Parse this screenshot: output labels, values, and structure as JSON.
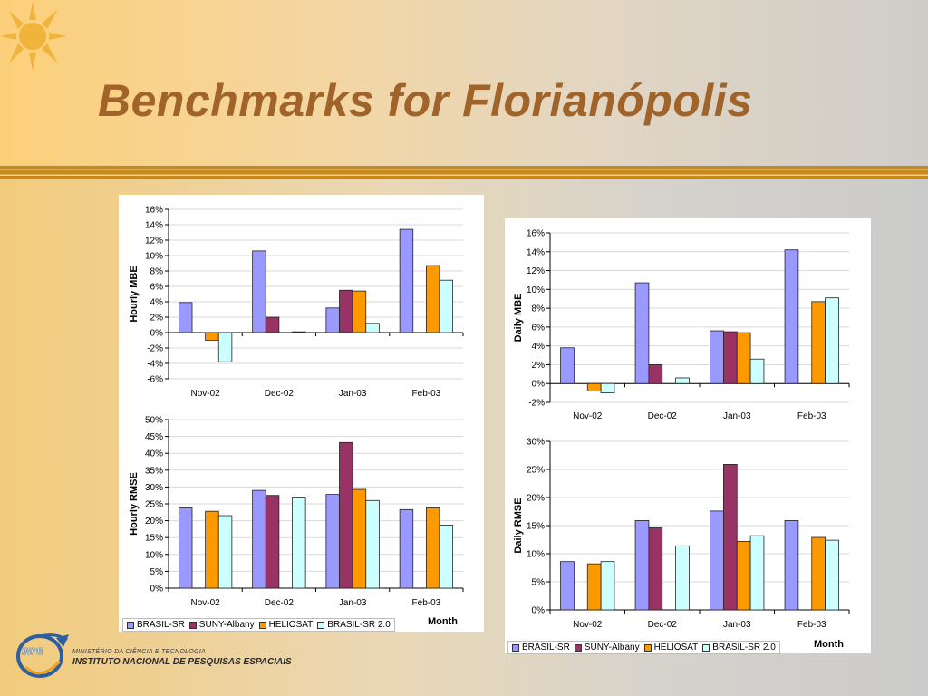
{
  "slide": {
    "title": "Benchmarks for Florianópolis"
  },
  "logo": {
    "line1": "MINISTÉRIO DA CIÊNCIA E TECNOLOGIA",
    "line2": "INSTITUTO NACIONAL DE PESQUISAS ESPACIAIS",
    "mark": "INPE"
  },
  "colors": {
    "series": [
      "#9999ff",
      "#993366",
      "#ff9900",
      "#ccffff"
    ],
    "title": "#a0632a",
    "divider": "#c8881a"
  },
  "legend": [
    "BRASIL-SR",
    "SUNY-Albany",
    "HELIOSAT",
    "BRASIL-SR 2.0"
  ],
  "month_label": "Month",
  "chart_data": [
    {
      "type": "bar",
      "ylabel": "Hourly MBE",
      "categories": [
        "Nov-02",
        "Dec-02",
        "Jan-03",
        "Feb-03"
      ],
      "yticks": [
        "16%",
        "14%",
        "12%",
        "10%",
        "8%",
        "6%",
        "4%",
        "2%",
        "0%",
        "-2%",
        "-4%",
        "-6%"
      ],
      "ylim": [
        -6,
        16
      ],
      "series": [
        {
          "name": "BRASIL-SR",
          "values": [
            3.9,
            10.6,
            3.2,
            13.4
          ]
        },
        {
          "name": "SUNY-Albany",
          "values": [
            null,
            2.0,
            5.5,
            null
          ]
        },
        {
          "name": "HELIOSAT",
          "values": [
            -1.0,
            null,
            5.4,
            8.7
          ]
        },
        {
          "name": "BRASIL-SR 2.0",
          "values": [
            -3.8,
            0.1,
            1.2,
            6.8
          ]
        }
      ],
      "grid": true
    },
    {
      "type": "bar",
      "ylabel": "Hourly RMSE",
      "categories": [
        "Nov-02",
        "Dec-02",
        "Jan-03",
        "Feb-03"
      ],
      "yticks": [
        "50%",
        "45%",
        "40%",
        "35%",
        "30%",
        "25%",
        "20%",
        "15%",
        "10%",
        "5%",
        "0%"
      ],
      "ylim": [
        0,
        50
      ],
      "series": [
        {
          "name": "BRASIL-SR",
          "values": [
            23.8,
            29.0,
            27.8,
            23.3
          ]
        },
        {
          "name": "SUNY-Albany",
          "values": [
            null,
            27.5,
            43.2,
            null
          ]
        },
        {
          "name": "HELIOSAT",
          "values": [
            22.8,
            null,
            29.3,
            23.8
          ]
        },
        {
          "name": "BRASIL-SR 2.0",
          "values": [
            21.5,
            27.0,
            26.0,
            18.7
          ]
        }
      ],
      "grid": true
    },
    {
      "type": "bar",
      "ylabel": "Daily MBE",
      "categories": [
        "Nov-02",
        "Dec-02",
        "Jan-03",
        "Feb-03"
      ],
      "yticks": [
        "16%",
        "14%",
        "12%",
        "10%",
        "8%",
        "6%",
        "4%",
        "2%",
        "0%",
        "-2%"
      ],
      "ylim": [
        -2,
        16
      ],
      "series": [
        {
          "name": "BRASIL-SR",
          "values": [
            3.8,
            10.7,
            5.6,
            14.2
          ]
        },
        {
          "name": "SUNY-Albany",
          "values": [
            null,
            2.0,
            5.5,
            null
          ]
        },
        {
          "name": "HELIOSAT",
          "values": [
            -0.8,
            null,
            5.4,
            8.7
          ]
        },
        {
          "name": "BRASIL-SR 2.0",
          "values": [
            -1.0,
            0.6,
            2.6,
            9.1
          ]
        }
      ],
      "grid": true
    },
    {
      "type": "bar",
      "ylabel": "Daily RMSE",
      "categories": [
        "Nov-02",
        "Dec-02",
        "Jan-03",
        "Feb-03"
      ],
      "yticks": [
        "30%",
        "25%",
        "20%",
        "15%",
        "10%",
        "5%",
        "0%"
      ],
      "ylim": [
        0,
        30
      ],
      "series": [
        {
          "name": "BRASIL-SR",
          "values": [
            8.6,
            15.9,
            17.6,
            15.9
          ]
        },
        {
          "name": "SUNY-Albany",
          "values": [
            null,
            14.6,
            25.9,
            null
          ]
        },
        {
          "name": "HELIOSAT",
          "values": [
            8.2,
            null,
            12.2,
            12.9
          ]
        },
        {
          "name": "BRASIL-SR 2.0",
          "values": [
            8.6,
            11.4,
            13.2,
            12.4
          ]
        }
      ],
      "grid": true
    }
  ]
}
